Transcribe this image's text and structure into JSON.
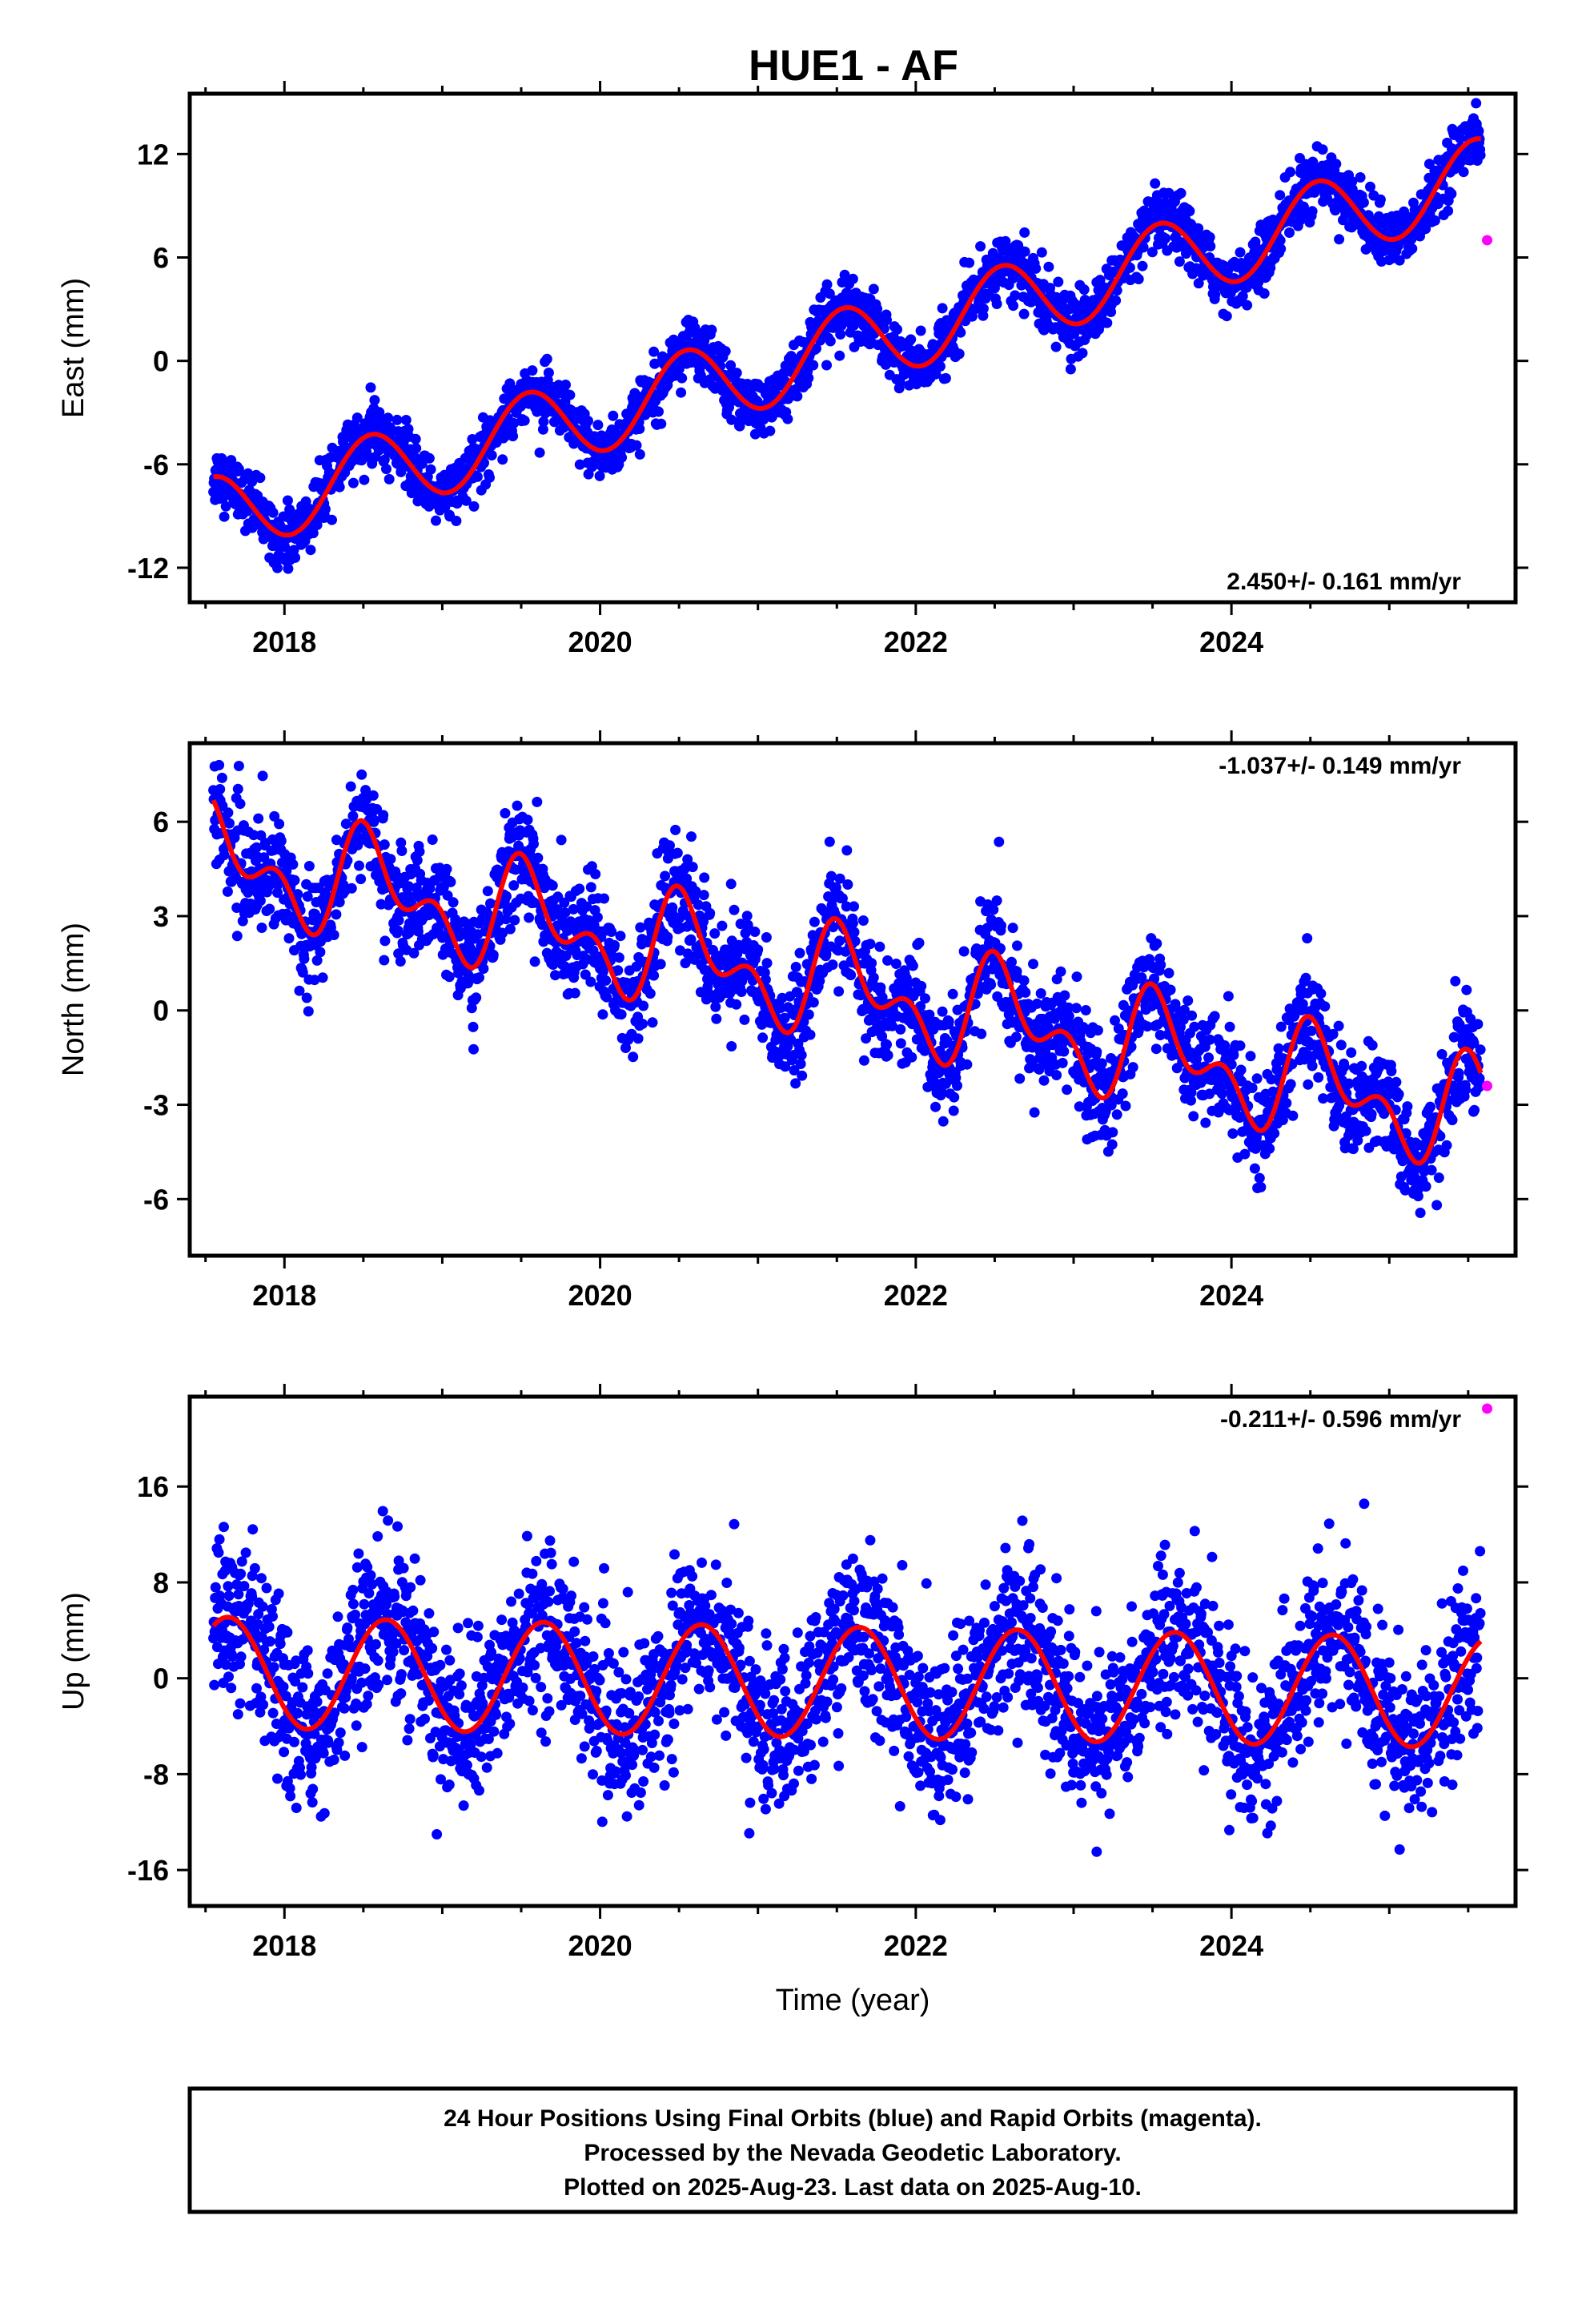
{
  "title": "HUE1 - AF",
  "footer": {
    "lines": [
      "24 Hour Positions Using Final Orbits (blue) and Rapid Orbits (magenta).",
      "Processed by the Nevada Geodetic Laboratory.",
      "Plotted on 2025-Aug-23. Last data on 2025-Aug-10."
    ]
  },
  "colors": {
    "final_points": "#0000ff",
    "rapid_points": "#ff00ff",
    "model_curve": "#ff0000",
    "frame": "#000000"
  },
  "chart_data": [
    {
      "type": "scatter",
      "name": "east",
      "ylabel": "East (mm)",
      "xlabel": "",
      "xlim": [
        2017.4,
        2025.8
      ],
      "ylim": [
        -14,
        15.5
      ],
      "xticks": [
        2018,
        2020,
        2022,
        2024
      ],
      "yticks": [
        -12,
        -6,
        0,
        6,
        12
      ],
      "rate_label": "2.450+/- 0.161 mm/yr",
      "rate_position": "bottom-right",
      "model": {
        "offset": -9.0,
        "velocity": 2.45,
        "start": 2017.55,
        "annual_cos": -2.2,
        "annual_sin": -0.6,
        "semiannual_cos": 0.0,
        "semiannual_sin": 0.0,
        "noise_sd": 0.85
      },
      "rapid_points": [
        {
          "x": 2025.62,
          "y": 7.0
        }
      ]
    },
    {
      "type": "scatter",
      "name": "north",
      "ylabel": "North (mm)",
      "xlabel": "",
      "xlim": [
        2017.4,
        2025.8
      ],
      "ylim": [
        -7.8,
        8.5
      ],
      "xticks": [
        2018,
        2020,
        2022,
        2024
      ],
      "yticks": [
        -6,
        -3,
        0,
        3,
        6
      ],
      "rate_label": "-1.037+/- 0.149 mm/yr",
      "rate_position": "top-right",
      "model": {
        "offset": 4.9,
        "velocity": -1.037,
        "start": 2017.55,
        "annual_cos": -1.2,
        "annual_sin": -0.5,
        "semiannual_cos": 0.9,
        "semiannual_sin": -0.4,
        "noise_sd": 0.85
      },
      "rapid_points": [
        {
          "x": 2025.62,
          "y": -2.4
        }
      ]
    },
    {
      "type": "scatter",
      "name": "up",
      "ylabel": "Up (mm)",
      "xlabel": "Time (year)",
      "xlim": [
        2017.4,
        2025.8
      ],
      "ylim": [
        -19,
        23.5
      ],
      "xticks": [
        2018,
        2020,
        2022,
        2024
      ],
      "yticks": [
        -16,
        -8,
        0,
        8,
        16
      ],
      "rate_label": "-0.211+/- 0.596 mm/yr",
      "rate_position": "top-right",
      "model": {
        "offset": 0.5,
        "velocity": -0.211,
        "start": 2017.55,
        "annual_cos": -2.9,
        "annual_sin": -3.6,
        "semiannual_cos": 0.0,
        "semiannual_sin": 0.0,
        "noise_sd": 3.3
      },
      "rapid_points": [
        {
          "x": 2025.62,
          "y": 22.5
        }
      ]
    }
  ]
}
